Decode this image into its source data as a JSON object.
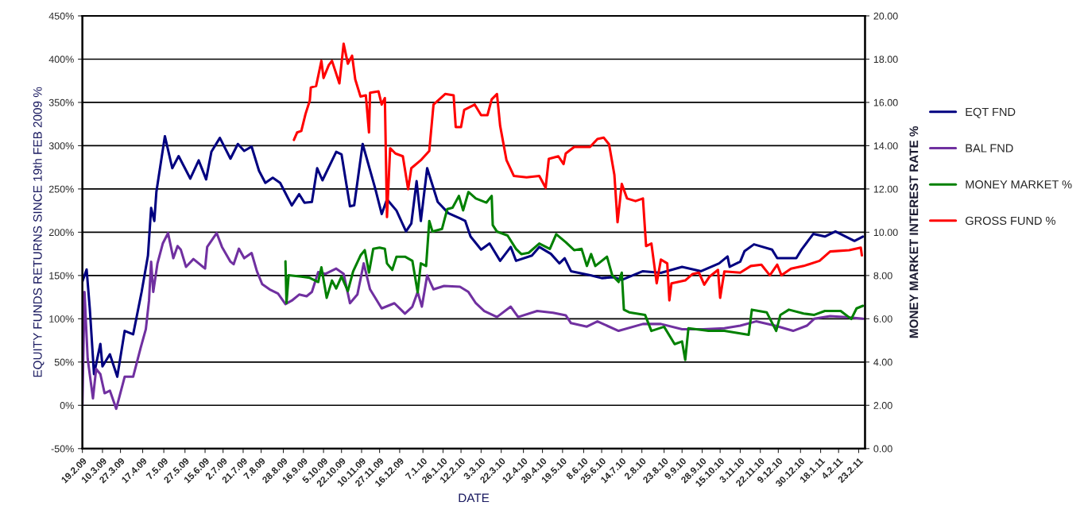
{
  "chart_data": {
    "type": "line",
    "xlabel": "DATE",
    "ylabel": "EQUITY FUNDS RETURNS SINCE 19th FEB 2009 %",
    "y2label": "MONEY MARKET INTEREST RATE %",
    "xlim": [
      "2009-02-19",
      "2011-03-01"
    ],
    "xticks": [
      {
        "value": "2009-02-19",
        "label": "19.2.09"
      },
      {
        "value": "2009-03-10",
        "label": "10.3.09"
      },
      {
        "value": "2009-03-27",
        "label": "27.3.09"
      },
      {
        "value": "2009-04-17",
        "label": "17.4.09"
      },
      {
        "value": "2009-05-07",
        "label": "7.5.09"
      },
      {
        "value": "2009-05-27",
        "label": "27.5.09"
      },
      {
        "value": "2009-06-15",
        "label": "15.6.09"
      },
      {
        "value": "2009-07-02",
        "label": "2.7.09"
      },
      {
        "value": "2009-07-21",
        "label": "21.7.09"
      },
      {
        "value": "2009-08-07",
        "label": "7.8.09"
      },
      {
        "value": "2009-08-28",
        "label": "28.8.09"
      },
      {
        "value": "2009-09-16",
        "label": "16.9.09"
      },
      {
        "value": "2009-10-05",
        "label": "5.10.09"
      },
      {
        "value": "2009-10-22",
        "label": "22.10.09"
      },
      {
        "value": "2009-11-10",
        "label": "10.11.09"
      },
      {
        "value": "2009-11-27",
        "label": "27.11.09"
      },
      {
        "value": "2009-12-16",
        "label": "16.12.09"
      },
      {
        "value": "2010-01-07",
        "label": "7.1.10"
      },
      {
        "value": "2010-01-26",
        "label": "26.1.10"
      },
      {
        "value": "2010-02-12",
        "label": "12.2.10"
      },
      {
        "value": "2010-03-03",
        "label": "3.3.10"
      },
      {
        "value": "2010-03-22",
        "label": "22.3.10"
      },
      {
        "value": "2010-04-12",
        "label": "12.4.10"
      },
      {
        "value": "2010-04-30",
        "label": "30.4.10"
      },
      {
        "value": "2010-05-19",
        "label": "19.5.10"
      },
      {
        "value": "2010-06-08",
        "label": "8.6.10"
      },
      {
        "value": "2010-06-25",
        "label": "25.6.10"
      },
      {
        "value": "2010-07-14",
        "label": "14.7.10"
      },
      {
        "value": "2010-08-02",
        "label": "2.8.10"
      },
      {
        "value": "2010-08-23",
        "label": "23.8.10"
      },
      {
        "value": "2010-09-09",
        "label": "9.9.10"
      },
      {
        "value": "2010-09-28",
        "label": "28.9.10"
      },
      {
        "value": "2010-10-15",
        "label": "15.10.10"
      },
      {
        "value": "2010-11-03",
        "label": "3.11.10"
      },
      {
        "value": "2010-11-22",
        "label": "22.11.10"
      },
      {
        "value": "2010-12-09",
        "label": "9.12.10"
      },
      {
        "value": "2010-12-30",
        "label": "30.12.10"
      },
      {
        "value": "2011-01-18",
        "label": "18.1.11"
      },
      {
        "value": "2011-02-04",
        "label": "4.2.11"
      },
      {
        "value": "2011-02-23",
        "label": "23.2.11"
      }
    ],
    "ylim": [
      -50,
      450
    ],
    "yticks": [
      {
        "value": -50,
        "label": "-50%"
      },
      {
        "value": 0,
        "label": "0%"
      },
      {
        "value": 50,
        "label": "50%"
      },
      {
        "value": 100,
        "label": "100%"
      },
      {
        "value": 150,
        "label": "150%"
      },
      {
        "value": 200,
        "label": "200%"
      },
      {
        "value": 250,
        "label": "250%"
      },
      {
        "value": 300,
        "label": "300%"
      },
      {
        "value": 350,
        "label": "350%"
      },
      {
        "value": 400,
        "label": "400%"
      },
      {
        "value": 450,
        "label": "450%"
      }
    ],
    "y2lim": [
      0,
      20
    ],
    "y2ticks": [
      {
        "value": 0,
        "label": "0.00"
      },
      {
        "value": 2,
        "label": "2.00"
      },
      {
        "value": 4,
        "label": "4.00"
      },
      {
        "value": 6,
        "label": "6.00"
      },
      {
        "value": 8,
        "label": "8.00"
      },
      {
        "value": 10,
        "label": "10.00"
      },
      {
        "value": 12,
        "label": "12.00"
      },
      {
        "value": 14,
        "label": "14.00"
      },
      {
        "value": 16,
        "label": "16.00"
      },
      {
        "value": 18,
        "label": "18.00"
      },
      {
        "value": 20,
        "label": "20.00"
      }
    ],
    "grid": "y",
    "legend": "right",
    "marker": "none",
    "line_style": "solid",
    "series": [
      {
        "name": "EQT FND",
        "color": "#000080",
        "x": [
          "2009-02-19",
          "2009-02-23",
          "2009-02-26",
          "2009-03-02",
          "2009-03-08",
          "2009-03-10",
          "2009-03-17",
          "2009-03-24",
          "2009-03-31",
          "2009-04-08",
          "2009-04-16",
          "2009-04-22",
          "2009-04-25",
          "2009-04-28",
          "2009-04-30",
          "2009-05-08",
          "2009-05-15",
          "2009-05-21",
          "2009-06-01",
          "2009-06-09",
          "2009-06-16",
          "2009-06-21",
          "2009-06-29",
          "2009-07-09",
          "2009-07-16",
          "2009-07-22",
          "2009-07-29",
          "2009-08-05",
          "2009-08-11",
          "2009-08-18",
          "2009-08-25",
          "2009-09-05",
          "2009-09-12",
          "2009-09-17",
          "2009-09-24",
          "2009-09-29",
          "2009-10-04",
          "2009-10-17",
          "2009-10-22",
          "2009-10-30",
          "2009-11-03",
          "2009-11-11",
          "2009-11-23",
          "2009-11-29",
          "2009-12-04",
          "2009-12-13",
          "2009-12-22",
          "2009-12-27",
          "2010-01-01",
          "2010-01-05",
          "2010-01-11",
          "2010-01-21",
          "2010-01-31",
          "2010-02-11",
          "2010-02-16",
          "2010-02-21",
          "2010-03-03",
          "2010-03-11",
          "2010-03-21",
          "2010-03-31",
          "2010-04-05",
          "2010-04-20",
          "2010-04-27",
          "2010-05-08",
          "2010-05-16",
          "2010-05-21",
          "2010-05-27",
          "2010-06-15",
          "2010-06-25",
          "2010-07-06",
          "2010-07-14",
          "2010-08-03",
          "2010-08-20",
          "2010-09-09",
          "2010-09-27",
          "2010-10-14",
          "2010-10-22",
          "2010-10-24",
          "2010-11-03",
          "2010-11-07",
          "2010-11-16",
          "2010-12-03",
          "2010-12-08",
          "2010-12-26",
          "2010-12-31",
          "2011-01-11",
          "2011-01-22",
          "2011-02-01",
          "2011-02-19",
          "2011-02-27"
        ],
        "values": [
          143,
          157,
          112,
          36,
          71,
          45,
          59,
          33,
          86,
          82,
          131,
          173,
          228,
          213,
          247,
          311,
          274,
          288,
          262,
          283,
          261,
          293,
          309,
          285,
          302,
          294,
          299,
          271,
          257,
          263,
          257,
          231,
          244,
          234,
          235,
          274,
          260,
          293,
          290,
          230,
          231,
          302,
          250,
          221,
          238,
          225,
          201,
          210,
          259,
          213,
          274,
          235,
          222,
          216,
          213,
          195,
          180,
          187,
          167,
          183,
          167,
          173,
          183,
          175,
          164,
          170,
          155,
          150,
          147,
          148,
          145,
          155,
          153,
          160,
          155,
          164,
          172,
          160,
          166,
          178,
          186,
          180,
          170,
          170,
          180,
          198,
          195,
          201,
          190,
          195
        ]
      },
      {
        "name": "BAL FND",
        "color": "#7030a0",
        "x": [
          "2009-02-19",
          "2009-02-21",
          "2009-02-24",
          "2009-03-01",
          "2009-03-04",
          "2009-03-08",
          "2009-03-12",
          "2009-03-17",
          "2009-03-23",
          "2009-03-31",
          "2009-04-08",
          "2009-04-15",
          "2009-04-20",
          "2009-04-23",
          "2009-04-25",
          "2009-04-27",
          "2009-05-01",
          "2009-05-06",
          "2009-05-11",
          "2009-05-16",
          "2009-05-20",
          "2009-05-23",
          "2009-05-28",
          "2009-06-04",
          "2009-06-15",
          "2009-06-17",
          "2009-06-26",
          "2009-07-01",
          "2009-07-09",
          "2009-07-12",
          "2009-07-17",
          "2009-07-22",
          "2009-07-29",
          "2009-08-03",
          "2009-08-08",
          "2009-08-15",
          "2009-08-23",
          "2009-08-30",
          "2009-09-05",
          "2009-09-12",
          "2009-09-19",
          "2009-09-24",
          "2009-09-30",
          "2009-10-07",
          "2009-10-17",
          "2009-10-24",
          "2009-10-30",
          "2009-11-06",
          "2009-11-12",
          "2009-11-18",
          "2009-11-29",
          "2009-12-11",
          "2009-12-21",
          "2009-12-28",
          "2010-01-02",
          "2010-01-06",
          "2010-01-11",
          "2010-01-17",
          "2010-01-27",
          "2010-02-11",
          "2010-02-19",
          "2010-02-26",
          "2010-03-06",
          "2010-03-18",
          "2010-03-31",
          "2010-04-07",
          "2010-04-25",
          "2010-05-10",
          "2010-05-22",
          "2010-05-27",
          "2010-06-11",
          "2010-06-21",
          "2010-07-11",
          "2010-08-03",
          "2010-08-20",
          "2010-09-09",
          "2010-09-29",
          "2010-10-19",
          "2010-11-03",
          "2010-11-18",
          "2010-12-06",
          "2010-12-23",
          "2011-01-05",
          "2011-01-12",
          "2011-01-27",
          "2011-02-11",
          "2011-02-27"
        ],
        "values": [
          0,
          131,
          54,
          8,
          42,
          36,
          14,
          17,
          -4,
          33,
          33,
          66,
          88,
          121,
          166,
          131,
          164,
          187,
          199,
          170,
          184,
          180,
          160,
          169,
          158,
          183,
          199,
          183,
          166,
          163,
          181,
          170,
          176,
          155,
          140,
          134,
          129,
          117,
          121,
          128,
          126,
          131,
          154,
          152,
          158,
          152,
          118,
          128,
          164,
          134,
          112,
          118,
          106,
          114,
          131,
          114,
          150,
          134,
          138,
          137,
          131,
          118,
          109,
          102,
          114,
          102,
          109,
          107,
          104,
          95,
          91,
          97,
          86,
          94,
          94,
          88,
          88,
          89,
          92,
          97,
          92,
          86,
          92,
          100,
          103,
          102,
          100
        ]
      },
      {
        "name": "MONEY MARKET %",
        "color": "#008000",
        "axis": "y2",
        "x": [
          "2009-08-30",
          "2009-08-31",
          "2009-09-02",
          "2009-09-14",
          "2009-09-22",
          "2009-09-30",
          "2009-10-03",
          "2009-10-08",
          "2009-10-13",
          "2009-10-17",
          "2009-10-22",
          "2009-10-28",
          "2009-11-02",
          "2009-11-09",
          "2009-11-13",
          "2009-11-17",
          "2009-11-21",
          "2009-11-27",
          "2009-12-02",
          "2009-12-04",
          "2009-12-09",
          "2009-12-13",
          "2009-12-21",
          "2009-12-28",
          "2010-01-02",
          "2010-01-05",
          "2010-01-10",
          "2010-01-13",
          "2010-01-16",
          "2010-01-25",
          "2010-01-30",
          "2010-02-04",
          "2010-02-10",
          "2010-02-14",
          "2010-02-19",
          "2010-02-26",
          "2010-03-08",
          "2010-03-13",
          "2010-03-14",
          "2010-03-18",
          "2010-03-28",
          "2010-04-05",
          "2010-04-10",
          "2010-04-17",
          "2010-04-27",
          "2010-05-07",
          "2010-05-13",
          "2010-05-22",
          "2010-05-30",
          "2010-06-06",
          "2010-06-11",
          "2010-06-15",
          "2010-06-19",
          "2010-06-30",
          "2010-07-05",
          "2010-07-11",
          "2010-07-14",
          "2010-07-16",
          "2010-07-21",
          "2010-08-05",
          "2010-08-11",
          "2010-08-23",
          "2010-09-02",
          "2010-09-09",
          "2010-09-12",
          "2010-09-15",
          "2010-10-04",
          "2010-10-19",
          "2010-11-11",
          "2010-11-14",
          "2010-11-28",
          "2010-12-07",
          "2010-12-11",
          "2010-12-19",
          "2011-01-02",
          "2011-01-12",
          "2011-01-22",
          "2011-02-06",
          "2011-02-16",
          "2011-02-21",
          "2011-02-27"
        ],
        "values": [
          8.65,
          6.73,
          8.01,
          7.95,
          7.89,
          7.7,
          8.38,
          6.97,
          7.77,
          7.4,
          7.95,
          7.28,
          8.19,
          8.93,
          9.17,
          8.13,
          9.23,
          9.29,
          9.23,
          8.56,
          8.26,
          8.87,
          8.87,
          8.68,
          7.22,
          8.56,
          8.44,
          10.52,
          10.03,
          10.15,
          11.07,
          11.13,
          11.68,
          11.01,
          11.86,
          11.56,
          11.37,
          11.68,
          10.33,
          10.03,
          9.85,
          9.23,
          8.99,
          9.05,
          9.48,
          9.23,
          9.91,
          9.54,
          9.17,
          9.23,
          8.44,
          8.99,
          8.44,
          8.87,
          8.01,
          7.7,
          8.13,
          6.42,
          6.3,
          6.18,
          5.44,
          5.63,
          4.83,
          4.95,
          4.1,
          5.56,
          5.44,
          5.44,
          5.26,
          6.42,
          6.3,
          5.44,
          6.18,
          6.42,
          6.24,
          6.18,
          6.36,
          6.36,
          5.99,
          6.48,
          6.6
        ]
      },
      {
        "name": "GROSS FUND %",
        "color": "#ff0000",
        "axis": "y2",
        "x": [
          "2009-09-07",
          "2009-09-10",
          "2009-09-14",
          "2009-09-18",
          "2009-09-22",
          "2009-09-23",
          "2009-09-28",
          "2009-10-03",
          "2009-10-05",
          "2009-10-10",
          "2009-10-13",
          "2009-10-20",
          "2009-10-24",
          "2009-10-28",
          "2009-11-01",
          "2009-11-04",
          "2009-11-09",
          "2009-11-14",
          "2009-11-17",
          "2009-11-18",
          "2009-11-26",
          "2009-11-29",
          "2009-12-02",
          "2009-12-04",
          "2009-12-07",
          "2009-12-12",
          "2009-12-19",
          "2009-12-24",
          "2009-12-27",
          "2010-01-05",
          "2010-01-13",
          "2010-01-17",
          "2010-01-21",
          "2010-01-28",
          "2010-02-05",
          "2010-02-07",
          "2010-02-12",
          "2010-02-15",
          "2010-02-25",
          "2010-03-03",
          "2010-03-09",
          "2010-03-13",
          "2010-03-18",
          "2010-03-21",
          "2010-03-27",
          "2010-04-03",
          "2010-04-15",
          "2010-04-27",
          "2010-05-03",
          "2010-05-06",
          "2010-05-15",
          "2010-05-20",
          "2010-05-22",
          "2010-05-30",
          "2010-06-14",
          "2010-06-21",
          "2010-06-27",
          "2010-07-02",
          "2010-07-07",
          "2010-07-10",
          "2010-07-14",
          "2010-07-19",
          "2010-07-27",
          "2010-08-03",
          "2010-08-06",
          "2010-08-11",
          "2010-08-16",
          "2010-08-20",
          "2010-08-26",
          "2010-08-28",
          "2010-08-30",
          "2010-09-12",
          "2010-09-19",
          "2010-09-25",
          "2010-09-30",
          "2010-10-05",
          "2010-10-13",
          "2010-10-15",
          "2010-10-19",
          "2010-11-03",
          "2010-11-13",
          "2010-11-23",
          "2010-12-01",
          "2010-12-08",
          "2010-12-12",
          "2010-12-21",
          "2011-01-02",
          "2011-01-17",
          "2011-01-27",
          "2011-02-14",
          "2011-02-25",
          "2011-02-26"
        ],
        "values": [
          14.27,
          14.61,
          14.68,
          15.47,
          16.08,
          16.69,
          16.76,
          17.92,
          17.13,
          17.73,
          17.92,
          16.88,
          18.71,
          17.79,
          18.16,
          17.06,
          16.27,
          16.33,
          14.61,
          16.45,
          16.51,
          15.9,
          16.2,
          10.7,
          13.88,
          13.64,
          13.51,
          11.99,
          12.96,
          13.33,
          13.76,
          15.9,
          16.08,
          16.39,
          16.33,
          14.86,
          14.86,
          15.65,
          15.9,
          15.41,
          15.41,
          16.14,
          16.39,
          14.92,
          13.33,
          12.6,
          12.54,
          12.6,
          12.05,
          13.39,
          13.51,
          13.15,
          13.64,
          13.94,
          13.94,
          14.31,
          14.37,
          14.06,
          12.66,
          10.46,
          12.23,
          11.56,
          11.44,
          11.56,
          9.36,
          9.48,
          7.64,
          8.74,
          8.56,
          6.85,
          7.64,
          7.77,
          8.07,
          8.13,
          7.58,
          7.95,
          8.26,
          6.97,
          8.19,
          8.13,
          8.44,
          8.5,
          8.01,
          8.5,
          8.01,
          8.32,
          8.44,
          8.68,
          9.11,
          9.17,
          9.29,
          8.93
        ]
      }
    ]
  }
}
